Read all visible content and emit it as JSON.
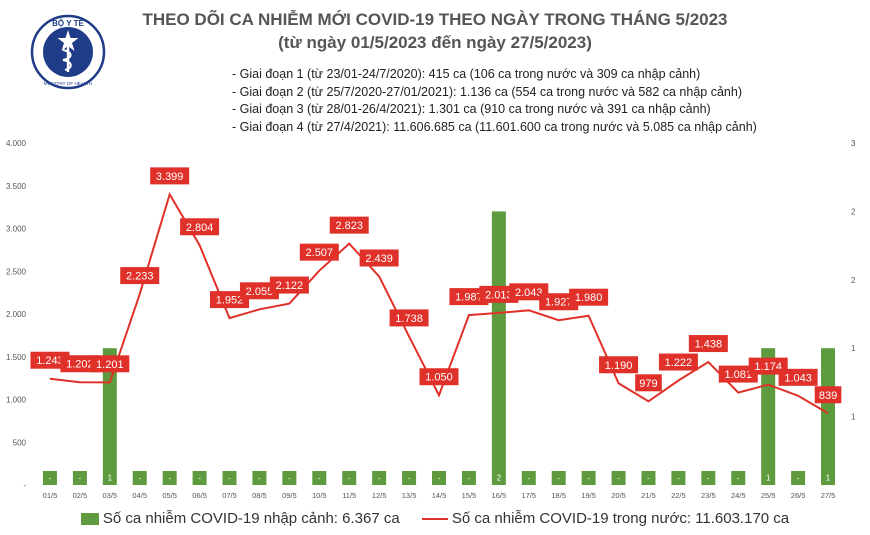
{
  "header": {
    "title": "THEO DÕI CA NHIỄM MỚI COVID-19 THEO NGÀY TRONG THÁNG 5/2023",
    "subtitle": "(từ ngày 01/5/2023 đến ngày 27/5/2023)"
  },
  "logo": {
    "text_top": "BỘ Y TẾ",
    "text_bottom": "MINISTRY OF HEALTH",
    "icon": "ministry-of-health-seal",
    "color": "#1f3c88"
  },
  "notes": [
    "- Giai đoạn 1 (từ 23/01-24/7/2020): 415 ca (106 ca trong nước và 309 ca nhập cảnh)",
    "- Giai đoạn 2 (từ 25/7/2020-27/01/2021): 1.136 ca (554 ca trong nước và 582 ca nhập cảnh)",
    "- Giai đoạn 3 (từ 28/01-26/4/2021): 1.301 ca (910 ca trong nước và 391 ca nhập cảnh)",
    "- Giai đoạn 4 (từ 27/4/2021): 11.606.685 ca (11.601.600 ca trong nước và 5.085 ca nhập cảnh)"
  ],
  "legend": {
    "bar_label": "Số ca nhiễm COVID-19 nhập cảnh: 6.367 ca",
    "line_label": "Số ca nhiễm COVID-19 trong nước: 11.603.170 ca"
  },
  "chart_data": {
    "type": "bar",
    "categories": [
      "01/5",
      "02/5",
      "03/5",
      "04/5",
      "05/5",
      "06/5",
      "07/5",
      "08/5",
      "09/5",
      "10/5",
      "11/5",
      "12/5",
      "13/5",
      "14/5",
      "15/5",
      "16/5",
      "17/5",
      "18/5",
      "19/5",
      "20/5",
      "21/5",
      "22/5",
      "23/5",
      "24/5",
      "25/5",
      "26/5",
      "27/5"
    ],
    "series": [
      {
        "type": "bar",
        "axis": "right",
        "values": [
          0,
          0,
          1,
          0,
          0,
          0,
          0,
          0,
          0,
          0,
          0,
          0,
          0,
          0,
          0,
          2,
          0,
          0,
          0,
          0,
          0,
          0,
          0,
          0,
          1,
          0,
          1
        ],
        "labels": [
          "-",
          "-",
          "1",
          "-",
          "-",
          "-",
          "-",
          "-",
          "-",
          "-",
          "-",
          "-",
          "-",
          "-",
          "-",
          "2",
          "-",
          "-",
          "-",
          "-",
          "-",
          "-",
          "-",
          "-",
          "1",
          "-",
          "1"
        ],
        "color": "#5e9b3e"
      },
      {
        "type": "line",
        "axis": "left",
        "values": [
          1243,
          1202,
          1201,
          2233,
          3399,
          2804,
          1952,
          2055,
          2122,
          2507,
          2823,
          2439,
          1738,
          1050,
          1987,
          2013,
          2043,
          1927,
          1980,
          1190,
          979,
          1222,
          1438,
          1081,
          1174,
          1043,
          839
        ],
        "labels": [
          "1.243",
          "1.202",
          "1.201",
          "2.233",
          "3.399",
          "2.804",
          "1.952",
          "2.055",
          "2.122",
          "2.507",
          "2.823",
          "2.439",
          "1.738",
          "1.050",
          "1.987",
          "2.013",
          "2.043",
          "1.927",
          "1.980",
          "1.190",
          "979",
          "1.222",
          "1.438",
          "1.081",
          "1.174",
          "1.043",
          "839"
        ],
        "color": "#e0302a"
      }
    ],
    "y_left": {
      "range": [
        0,
        4000
      ],
      "ticks": [
        "-",
        "500",
        "1.000",
        "1.500",
        "2.000",
        "2.500",
        "3.000",
        "3.500",
        "4.000"
      ]
    },
    "y_right": {
      "range": [
        0,
        2.5
      ],
      "ticks": [
        "1",
        "1",
        "2",
        "2",
        "3"
      ]
    },
    "grid": false,
    "legend_position": "bottom"
  }
}
